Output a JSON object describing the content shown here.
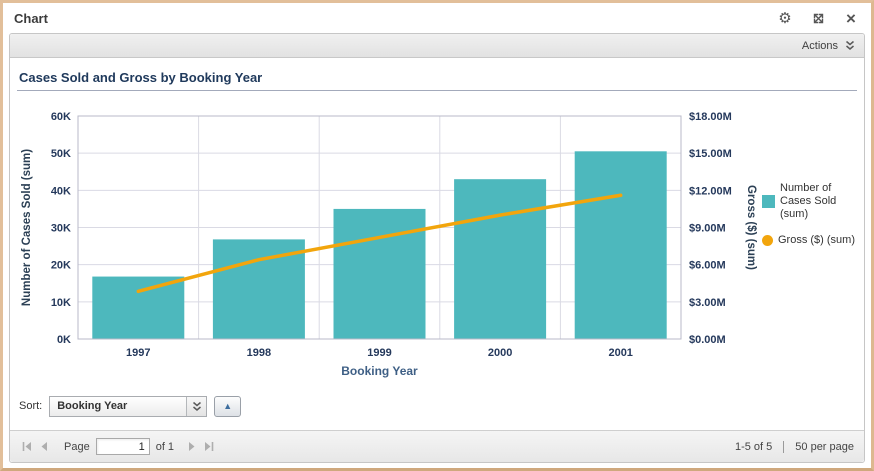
{
  "window": {
    "title": "Chart"
  },
  "icons": {
    "gear": "⚙",
    "close": "×",
    "sort_ascending": "▲"
  },
  "toolbar": {
    "actions_label": "Actions"
  },
  "chart_data": {
    "type": "bar+line",
    "title": "Cases Sold and Gross by Booking Year",
    "categories": [
      "1997",
      "1998",
      "1999",
      "2000",
      "2001"
    ],
    "series": [
      {
        "name": "Number of Cases Sold (sum)",
        "type": "bar",
        "axis": "left",
        "color": "#4db8bd",
        "values": [
          16800,
          26800,
          35000,
          43000,
          50500
        ]
      },
      {
        "name": "Gross ($) (sum)",
        "type": "line",
        "axis": "right",
        "color": "#f2a50c",
        "values": [
          3850000,
          6400000,
          8200000,
          10000000,
          11600000
        ]
      }
    ],
    "xlabel": "Booking Year",
    "left_axis": {
      "label": "Number of Cases Sold (sum)",
      "min": 0,
      "max": 60000,
      "ticks": [
        "0K",
        "10K",
        "20K",
        "30K",
        "40K",
        "50K",
        "60K"
      ]
    },
    "right_axis": {
      "label": "Gross ($) (sum)",
      "min": 0,
      "max": 18000000,
      "ticks": [
        "$0.00M",
        "$3.00M",
        "$6.00M",
        "$9.00M",
        "$12.00M",
        "$15.00M",
        "$18.00M"
      ]
    },
    "grid": true,
    "legend_position": "right"
  },
  "sort": {
    "label": "Sort:",
    "value": "Booking Year"
  },
  "footer": {
    "page_label": "Page",
    "page_value": "1",
    "of_label": "of 1",
    "range": "1-5 of 5",
    "per_page": "50 per page"
  },
  "colors": {
    "border": "#e2bf9a",
    "bar": "#4db8bd",
    "line": "#f2a50c",
    "sort_arrow_blue": "#3e6e9e"
  }
}
